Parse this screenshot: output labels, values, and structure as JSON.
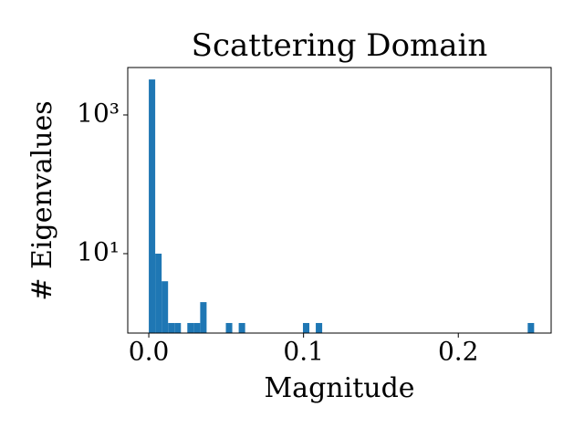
{
  "chart_data": {
    "type": "histogram",
    "title": "Scattering Domain",
    "x_label": "Magnitude",
    "y_label": "# Eigenvalues",
    "color": "#1f77b4",
    "log_y": true,
    "bins": [
      0,
      0.00415,
      0.0083,
      0.01245,
      0.0166,
      0.02075,
      0.0249,
      0.02905,
      0.0332,
      0.03735,
      0.0415,
      0.04565,
      0.0498,
      0.05395,
      0.0581,
      0.06225,
      0.0664,
      0.07055,
      0.0747,
      0.07885,
      0.083,
      0.08715,
      0.0913,
      0.09545,
      0.0996,
      0.10375,
      0.1079,
      0.11205,
      0.1162,
      0.12035,
      0.1245,
      0.12865,
      0.1328,
      0.13695,
      0.1411,
      0.14525,
      0.1494,
      0.15355,
      0.1577,
      0.16185,
      0.166,
      0.17015,
      0.1743,
      0.17845,
      0.1826,
      0.18675,
      0.1909,
      0.19505,
      0.1992,
      0.20335,
      0.2075,
      0.21165,
      0.2158,
      0.21995,
      0.2241,
      0.22825,
      0.2324,
      0.23655,
      0.2407,
      0.24485,
      0.249
    ],
    "values": [
      3250,
      10,
      4,
      1,
      1,
      0,
      1,
      1,
      2,
      0,
      0,
      0,
      1,
      0,
      1,
      0,
      0,
      0,
      0,
      0,
      0,
      0,
      0,
      0,
      1,
      0,
      1,
      0,
      0,
      0,
      0,
      0,
      0,
      0,
      0,
      0,
      0,
      0,
      0,
      0,
      0,
      0,
      0,
      0,
      0,
      0,
      0,
      0,
      0,
      0,
      0,
      0,
      0,
      0,
      0,
      0,
      0,
      0,
      0,
      1
    ],
    "xlim": [
      -0.0136,
      0.26
    ],
    "xticks": [
      {
        "value": 0,
        "label": "0.0"
      },
      0.1,
      0.2
    ],
    "ylim": [
      0.716,
      4830
    ],
    "yticks": [
      {
        "value": 10,
        "label": "10¹"
      },
      {
        "value": 1000,
        "label": "10³"
      }
    ]
  }
}
